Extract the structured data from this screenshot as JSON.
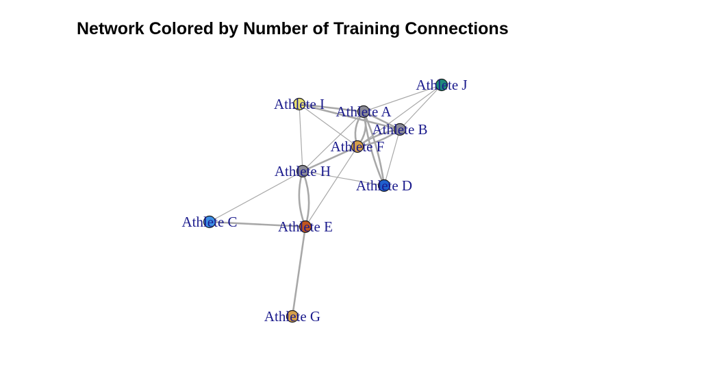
{
  "title": "Network Colored by Number of Training Connections",
  "colors": {
    "edge": "#a8a8a8",
    "label": "#1a1a8c",
    "node_stroke": "#1a1a1a"
  },
  "nodes": [
    {
      "id": "A",
      "label": "Athlete A",
      "color": "#8a8a96"
    },
    {
      "id": "B",
      "label": "Athlete B",
      "color": "#8a8a96"
    },
    {
      "id": "C",
      "label": "Athlete C",
      "color": "#3d8fe6"
    },
    {
      "id": "D",
      "label": "Athlete D",
      "color": "#1f5fcc"
    },
    {
      "id": "E",
      "label": "Athlete E",
      "color": "#c0551f"
    },
    {
      "id": "F",
      "label": "Athlete F",
      "color": "#d6a04a"
    },
    {
      "id": "G",
      "label": "Athlete G",
      "color": "#d6a04a"
    },
    {
      "id": "H",
      "label": "Athlete H",
      "color": "#8a8a96"
    },
    {
      "id": "I",
      "label": "Athlete I",
      "color": "#e8e070"
    },
    {
      "id": "J",
      "label": "Athlete J",
      "color": "#1f8a7a"
    }
  ],
  "edges": [
    {
      "from": "I",
      "to": "A",
      "weight": 2
    },
    {
      "from": "I",
      "to": "B",
      "weight": 2
    },
    {
      "from": "I",
      "to": "F",
      "weight": 1
    },
    {
      "from": "I",
      "to": "H",
      "weight": 1
    },
    {
      "from": "A",
      "to": "J",
      "weight": 1
    },
    {
      "from": "A",
      "to": "B",
      "weight": 2
    },
    {
      "from": "A",
      "to": "F",
      "weight": 2
    },
    {
      "from": "A",
      "to": "D",
      "weight": 2
    },
    {
      "from": "A",
      "to": "H",
      "weight": 1
    },
    {
      "from": "B",
      "to": "J",
      "weight": 1
    },
    {
      "from": "B",
      "to": "F",
      "weight": 2
    },
    {
      "from": "B",
      "to": "D",
      "weight": 1
    },
    {
      "from": "J",
      "to": "F",
      "weight": 1
    },
    {
      "from": "F",
      "to": "H",
      "weight": 2
    },
    {
      "from": "F",
      "to": "E",
      "weight": 1
    },
    {
      "from": "H",
      "to": "D",
      "weight": 1
    },
    {
      "from": "H",
      "to": "E",
      "weight": 2
    },
    {
      "from": "H",
      "to": "C",
      "weight": 1
    },
    {
      "from": "C",
      "to": "E",
      "weight": 2
    },
    {
      "from": "E",
      "to": "G",
      "weight": 2
    }
  ]
}
